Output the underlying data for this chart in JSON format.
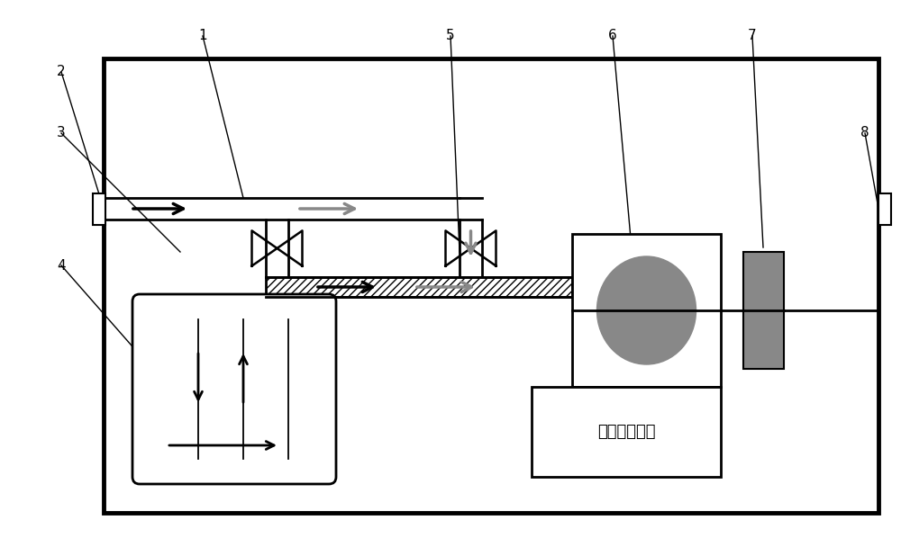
{
  "fig_width": 10.0,
  "fig_height": 5.98,
  "bg_color": "#ffffff",
  "black": "#000000",
  "mid_gray": "#888888",
  "label_fontsize": 11
}
